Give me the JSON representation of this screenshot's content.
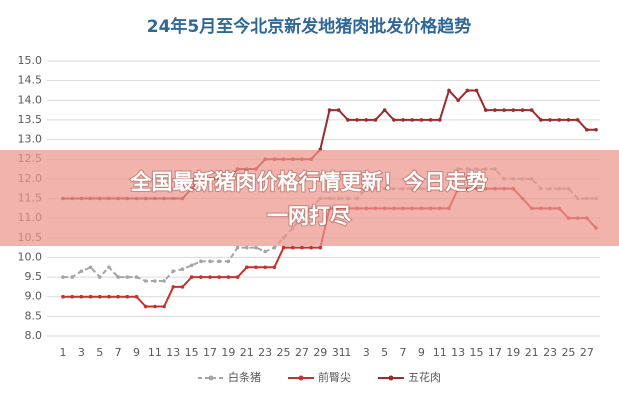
{
  "chart_data": {
    "type": "line",
    "title": "24年5月至今北京新发地猪肉批发价格趋势",
    "categories": [
      "1",
      null,
      "3",
      null,
      "5",
      null,
      "7",
      null,
      "9",
      null,
      "11",
      null,
      "13",
      null,
      "15",
      null,
      "17",
      null,
      "19",
      null,
      "21",
      null,
      "23",
      null,
      "25",
      null,
      "27",
      null,
      "29",
      null,
      "31",
      "1",
      null,
      "3",
      null,
      "5",
      null,
      "7",
      null,
      "9",
      null,
      "11",
      null,
      "13",
      null,
      "15",
      null,
      "17",
      null,
      "19",
      null,
      "21",
      null,
      "23",
      null,
      "25",
      null,
      "27",
      null
    ],
    "ylim": [
      8,
      15
    ],
    "yticks": [
      {
        "value": 8,
        "label": "8.0"
      },
      8.5,
      {
        "value": 9,
        "label": "9.0"
      },
      9.5,
      {
        "value": 10,
        "label": "10.0"
      },
      10.5,
      {
        "value": 11,
        "label": "11.0"
      },
      11.5,
      {
        "value": 12,
        "label": "12.0"
      },
      12.5,
      {
        "value": 13,
        "label": "13.0"
      },
      13.5,
      {
        "value": 14,
        "label": "14.0"
      },
      14.5,
      {
        "value": 15,
        "label": "15.0"
      }
    ],
    "grid": true,
    "legend": "bottom",
    "series": [
      {
        "name": "白条猪",
        "color": "#a5a5a5",
        "dash": true,
        "values": [
          9.5,
          9.5,
          9.65,
          9.75,
          9.5,
          9.75,
          9.5,
          9.5,
          9.5,
          9.4,
          9.4,
          9.4,
          9.65,
          9.7,
          9.8,
          9.9,
          9.9,
          9.9,
          9.9,
          10.25,
          10.25,
          10.25,
          10.15,
          10.25,
          10.5,
          10.75,
          11.0,
          11.25,
          11.5,
          11.5,
          11.5,
          11.5,
          11.5,
          11.75,
          11.75,
          11.75,
          11.75,
          11.75,
          11.75,
          11.75,
          11.75,
          11.75,
          11.75,
          12.25,
          12.25,
          12.25,
          12.25,
          12.25,
          12.0,
          12.0,
          12.0,
          12.0,
          11.75,
          11.75,
          11.75,
          11.75,
          11.5,
          11.5,
          11.5
        ]
      },
      {
        "name": "前臀尖",
        "color": "#c9302c",
        "dash": false,
        "values": [
          9.0,
          9.0,
          9.0,
          9.0,
          9.0,
          9.0,
          9.0,
          9.0,
          9.0,
          8.75,
          8.75,
          8.75,
          9.25,
          9.25,
          9.5,
          9.5,
          9.5,
          9.5,
          9.5,
          9.5,
          9.75,
          9.75,
          9.75,
          9.75,
          10.25,
          10.25,
          10.25,
          10.25,
          10.25,
          11.25,
          11.25,
          11.25,
          11.25,
          11.25,
          11.25,
          11.25,
          11.25,
          11.25,
          11.25,
          11.25,
          11.25,
          11.25,
          11.25,
          11.75,
          11.75,
          11.75,
          11.75,
          11.75,
          11.75,
          11.75,
          11.5,
          11.25,
          11.25,
          11.25,
          11.25,
          11.0,
          11.0,
          11.0,
          10.75
        ]
      },
      {
        "name": "五花肉",
        "color": "#9e2a2b",
        "dash": false,
        "values": [
          11.5,
          11.5,
          11.5,
          11.5,
          11.5,
          11.5,
          11.5,
          11.5,
          11.5,
          11.5,
          11.5,
          11.5,
          11.5,
          11.5,
          11.75,
          12.0,
          12.0,
          12.0,
          12.0,
          12.25,
          12.25,
          12.25,
          12.5,
          12.5,
          12.5,
          12.5,
          12.5,
          12.5,
          12.75,
          13.75,
          13.75,
          13.5,
          13.5,
          13.5,
          13.5,
          13.75,
          13.5,
          13.5,
          13.5,
          13.5,
          13.5,
          13.5,
          14.25,
          14.0,
          14.25,
          14.25,
          13.75,
          13.75,
          13.75,
          13.75,
          13.75,
          13.75,
          13.5,
          13.5,
          13.5,
          13.5,
          13.5,
          13.25,
          13.25
        ]
      }
    ]
  },
  "overlay": {
    "headline": [
      "全国最新猪肉价格行情更新！今日走势",
      "一网打尽"
    ]
  }
}
